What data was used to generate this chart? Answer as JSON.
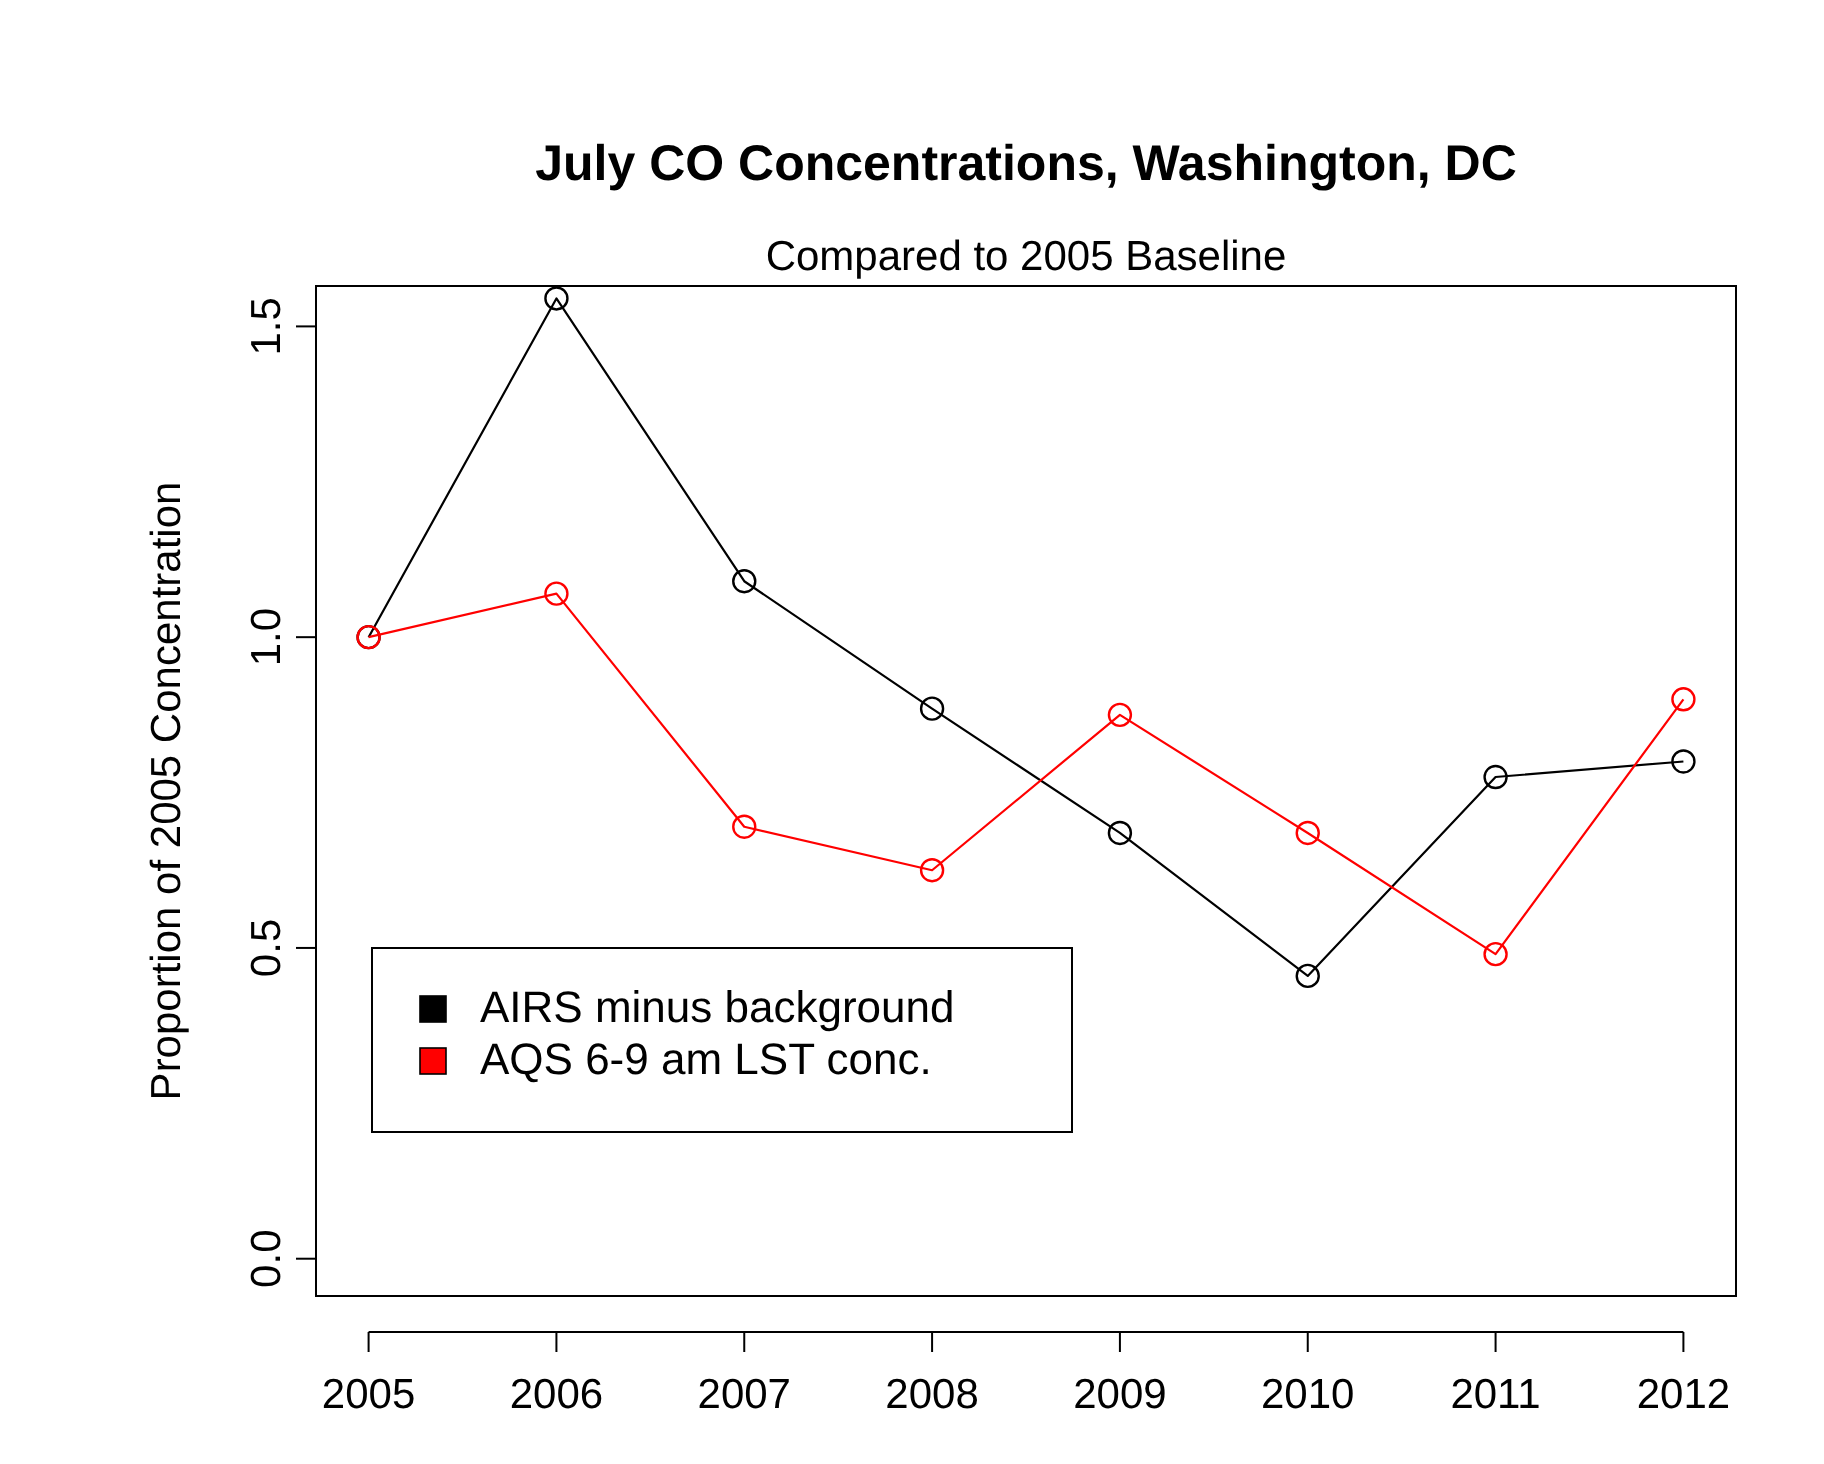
{
  "chart_data": {
    "type": "line",
    "title": "July CO Concentrations, Washington, DC",
    "subtitle": "Compared to 2005 Baseline",
    "ylabel": "Proportion of 2005 Concentration",
    "x": [
      2005,
      2006,
      2007,
      2008,
      2009,
      2010,
      2011,
      2012
    ],
    "series": [
      {
        "name": "AIRS minus background",
        "color": "#000000",
        "values": [
          1.0,
          1.545,
          1.09,
          0.885,
          0.685,
          0.455,
          0.775,
          0.8
        ]
      },
      {
        "name": "AQS 6-9 am LST conc.",
        "color": "#ff0000",
        "values": [
          1.0,
          1.07,
          0.695,
          0.625,
          0.875,
          0.685,
          0.49,
          0.9
        ]
      }
    ],
    "xlim": [
      2004.72,
      2012.28
    ],
    "xticks": [
      2005,
      2006,
      2007,
      2008,
      2009,
      2010,
      2011,
      2012
    ],
    "ylim": [
      -0.06,
      1.565
    ],
    "yticks": [
      {
        "value": 0,
        "label": "0.0"
      },
      0.5,
      {
        "value": 1,
        "label": "1.0"
      },
      1.5
    ],
    "grid": false,
    "legend": "bottom left",
    "marker": "circle",
    "line_style": "solid"
  }
}
